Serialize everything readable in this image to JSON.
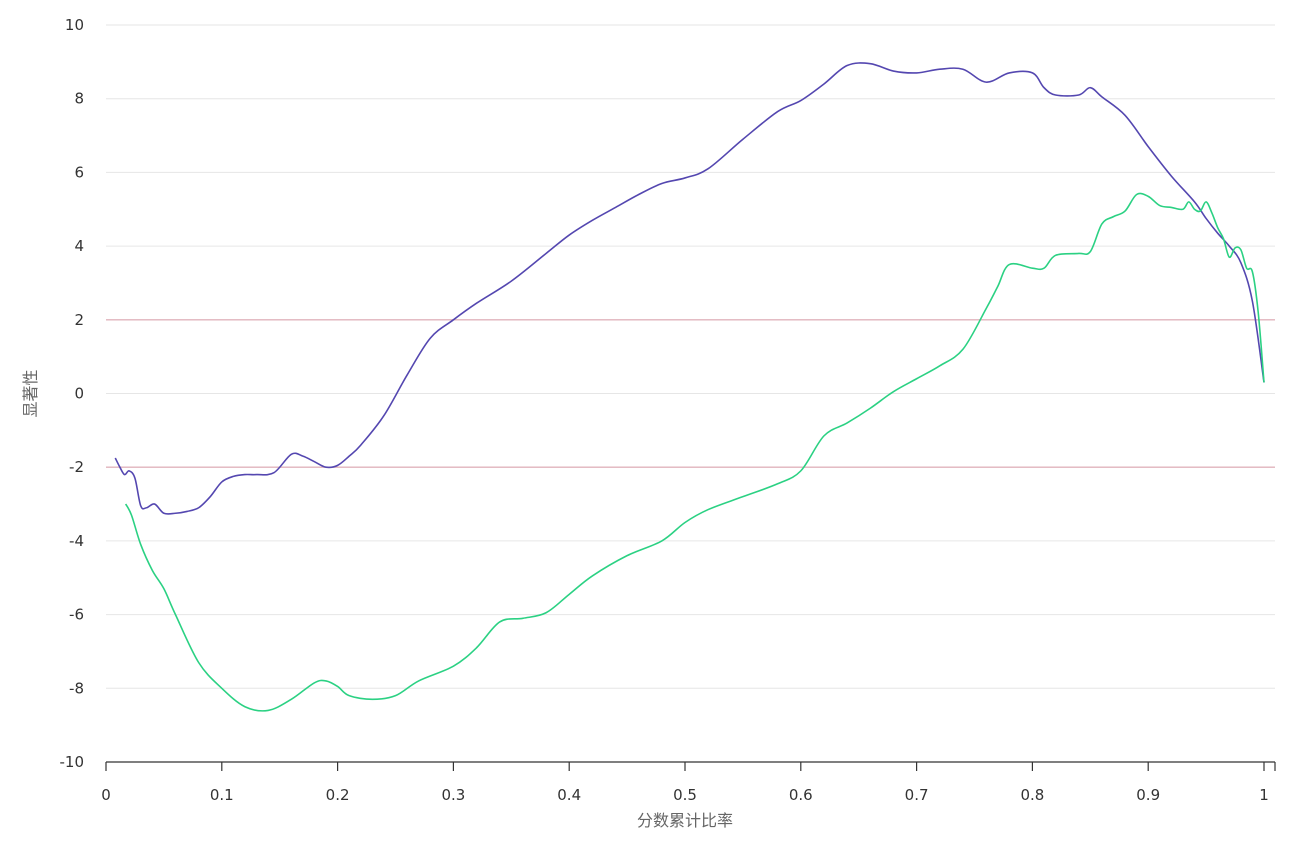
{
  "chart_data": {
    "type": "line",
    "xlabel": "分数累计比率",
    "ylabel": "显著性",
    "xlim": [
      0,
      1
    ],
    "ylim": [
      -10,
      10
    ],
    "x_ticks": [
      "0",
      "0.1",
      "0.2",
      "0.3",
      "0.4",
      "0.5",
      "0.6",
      "0.7",
      "0.8",
      "0.9",
      "1"
    ],
    "y_ticks": [
      "10",
      "8",
      "6",
      "4",
      "2",
      "0",
      "-2",
      "-4",
      "-6",
      "-8",
      "-10"
    ],
    "grid": "horizontal",
    "reference_lines": [
      2,
      -2
    ],
    "colors": {
      "reference": "#e2b4bd",
      "grid": "#e6e6e6",
      "axis": "#333333"
    },
    "series": [
      {
        "color": "#5447b0",
        "x": [
          0.008,
          0.012,
          0.016,
          0.02,
          0.025,
          0.03,
          0.035,
          0.042,
          0.05,
          0.06,
          0.07,
          0.08,
          0.09,
          0.1,
          0.11,
          0.12,
          0.13,
          0.145,
          0.16,
          0.17,
          0.18,
          0.19,
          0.2,
          0.21,
          0.22,
          0.24,
          0.26,
          0.28,
          0.3,
          0.32,
          0.35,
          0.38,
          0.4,
          0.42,
          0.44,
          0.46,
          0.48,
          0.5,
          0.52,
          0.55,
          0.58,
          0.6,
          0.62,
          0.64,
          0.66,
          0.68,
          0.7,
          0.72,
          0.74,
          0.76,
          0.78,
          0.8,
          0.81,
          0.82,
          0.84,
          0.85,
          0.86,
          0.88,
          0.9,
          0.92,
          0.94,
          0.95,
          0.96,
          0.97,
          0.98,
          0.99,
          1.0
        ],
        "y": [
          -1.75,
          -2.0,
          -2.2,
          -2.1,
          -2.3,
          -3.05,
          -3.1,
          -3.0,
          -3.25,
          -3.25,
          -3.2,
          -3.1,
          -2.8,
          -2.4,
          -2.25,
          -2.2,
          -2.2,
          -2.15,
          -1.65,
          -1.7,
          -1.85,
          -2.0,
          -1.95,
          -1.7,
          -1.4,
          -0.6,
          0.5,
          1.5,
          2.0,
          2.45,
          3.05,
          3.8,
          4.3,
          4.7,
          5.05,
          5.4,
          5.7,
          5.85,
          6.1,
          6.9,
          7.65,
          7.95,
          8.4,
          8.9,
          8.95,
          8.75,
          8.7,
          8.8,
          8.8,
          8.45,
          8.7,
          8.7,
          8.3,
          8.1,
          8.1,
          8.3,
          8.05,
          7.55,
          6.7,
          5.9,
          5.2,
          4.75,
          4.35,
          4.0,
          3.55,
          2.5,
          0.3
        ]
      },
      {
        "color": "#2bd183",
        "x": [
          0.017,
          0.022,
          0.03,
          0.04,
          0.05,
          0.06,
          0.08,
          0.1,
          0.12,
          0.14,
          0.16,
          0.18,
          0.19,
          0.2,
          0.21,
          0.23,
          0.25,
          0.27,
          0.3,
          0.32,
          0.34,
          0.36,
          0.38,
          0.4,
          0.42,
          0.45,
          0.48,
          0.5,
          0.52,
          0.55,
          0.58,
          0.6,
          0.62,
          0.64,
          0.66,
          0.68,
          0.7,
          0.72,
          0.74,
          0.76,
          0.77,
          0.78,
          0.8,
          0.81,
          0.82,
          0.84,
          0.85,
          0.86,
          0.87,
          0.88,
          0.89,
          0.9,
          0.91,
          0.92,
          0.93,
          0.935,
          0.94,
          0.945,
          0.95,
          0.955,
          0.96,
          0.965,
          0.97,
          0.975,
          0.98,
          0.985,
          0.99,
          0.995,
          1.0
        ],
        "y": [
          -3.0,
          -3.3,
          -4.1,
          -4.8,
          -5.3,
          -6.0,
          -7.3,
          -8.0,
          -8.5,
          -8.6,
          -8.3,
          -7.85,
          -7.8,
          -7.95,
          -8.2,
          -8.3,
          -8.2,
          -7.8,
          -7.4,
          -6.9,
          -6.2,
          -6.1,
          -5.95,
          -5.45,
          -4.95,
          -4.4,
          -4.0,
          -3.5,
          -3.15,
          -2.8,
          -2.45,
          -2.1,
          -1.15,
          -0.8,
          -0.4,
          0.05,
          0.4,
          0.75,
          1.2,
          2.3,
          2.9,
          3.5,
          3.4,
          3.4,
          3.75,
          3.8,
          3.85,
          4.6,
          4.8,
          4.95,
          5.4,
          5.35,
          5.1,
          5.05,
          5.0,
          5.2,
          5.0,
          4.95,
          5.2,
          4.9,
          4.5,
          4.2,
          3.7,
          3.95,
          3.9,
          3.4,
          3.3,
          2.2,
          0.3
        ]
      }
    ]
  }
}
